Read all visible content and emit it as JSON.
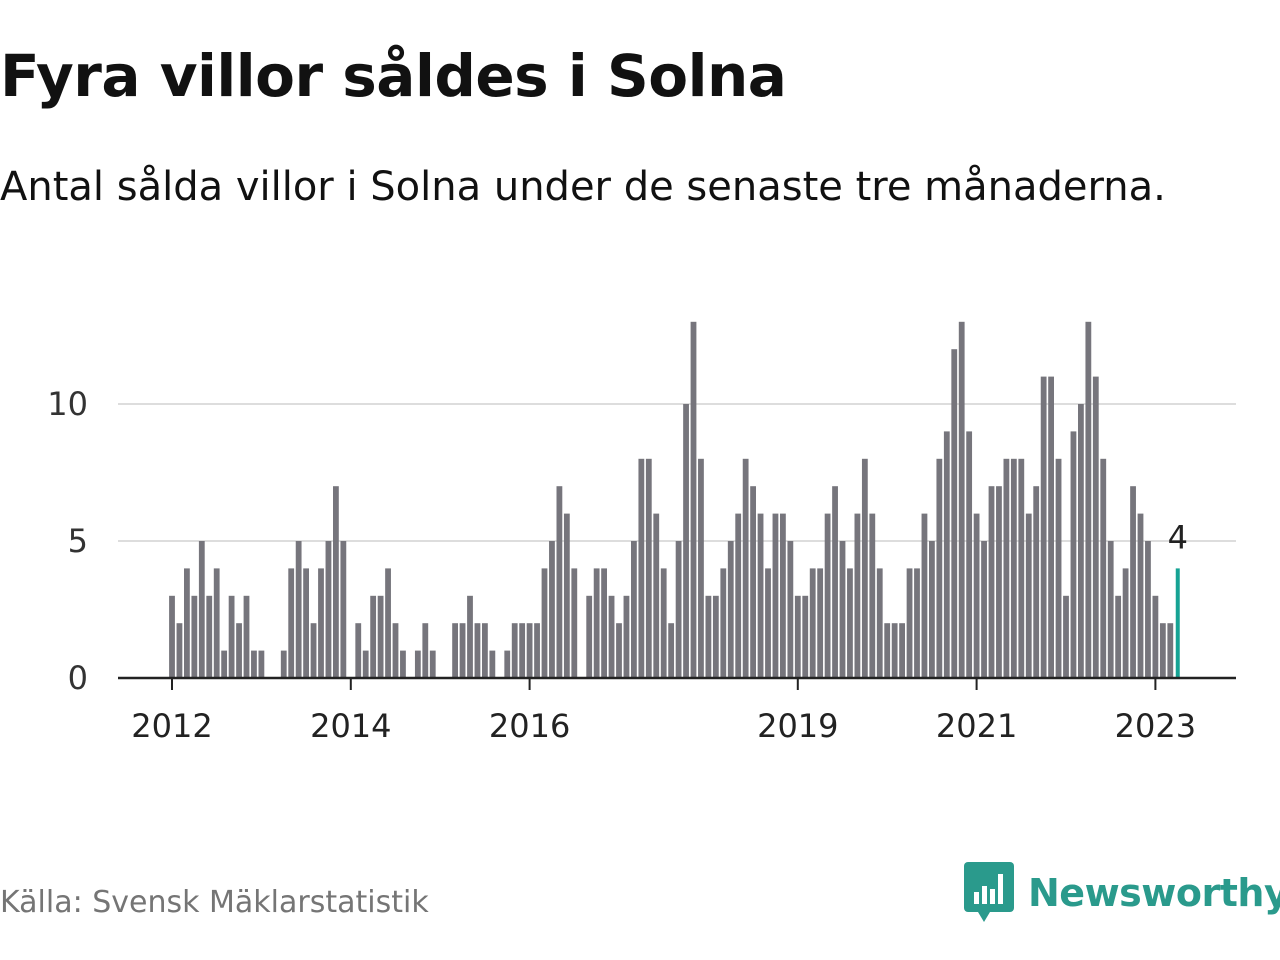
{
  "header": {
    "title": "Fyra villor såldes i Solna",
    "subtitle": "Antal sålda villor i Solna under de senaste tre månaderna."
  },
  "footer": {
    "source": "Källa: Svensk Mäklarstatistik",
    "brand": "Newsworthy",
    "brand_icon": "newsworthy-logo-icon"
  },
  "colors": {
    "bar": "#76757c",
    "highlight": "#16a394",
    "grid": "#dddddd",
    "axis": "#222222",
    "brand": "#2a9a8c"
  },
  "chart_data": {
    "type": "bar",
    "title": "Fyra villor såldes i Solna",
    "xlabel": "",
    "ylabel": "",
    "ylim": [
      0,
      13
    ],
    "yticks": [
      0,
      5,
      10
    ],
    "xtick_labels": [
      "2012",
      "2014",
      "2016",
      "2019",
      "2021",
      "2023"
    ],
    "xtick_months": [
      0,
      24,
      48,
      84,
      108,
      132
    ],
    "start": "2012-01",
    "values": [
      3,
      2,
      4,
      3,
      5,
      3,
      4,
      1,
      3,
      2,
      3,
      1,
      1,
      null,
      null,
      1,
      4,
      5,
      4,
      2,
      4,
      5,
      7,
      5,
      null,
      2,
      1,
      3,
      3,
      4,
      2,
      1,
      null,
      1,
      2,
      1,
      null,
      null,
      2,
      2,
      3,
      2,
      2,
      1,
      null,
      1,
      2,
      2,
      2,
      2,
      4,
      5,
      7,
      6,
      4,
      null,
      3,
      4,
      4,
      3,
      2,
      3,
      5,
      8,
      8,
      6,
      4,
      2,
      5,
      10,
      13,
      8,
      3,
      3,
      4,
      5,
      6,
      8,
      7,
      6,
      4,
      6,
      6,
      5,
      3,
      3,
      4,
      4,
      6,
      7,
      5,
      4,
      6,
      8,
      6,
      4,
      2,
      2,
      2,
      4,
      4,
      6,
      5,
      8,
      9,
      12,
      13,
      9,
      6,
      5,
      7,
      7,
      8,
      8,
      8,
      6,
      7,
      11,
      11,
      8,
      3,
      9,
      10,
      13,
      11,
      8,
      5,
      3,
      4,
      7,
      6,
      5,
      3,
      2,
      2,
      4
    ],
    "highlight_index": 135,
    "highlight_label": "4"
  }
}
